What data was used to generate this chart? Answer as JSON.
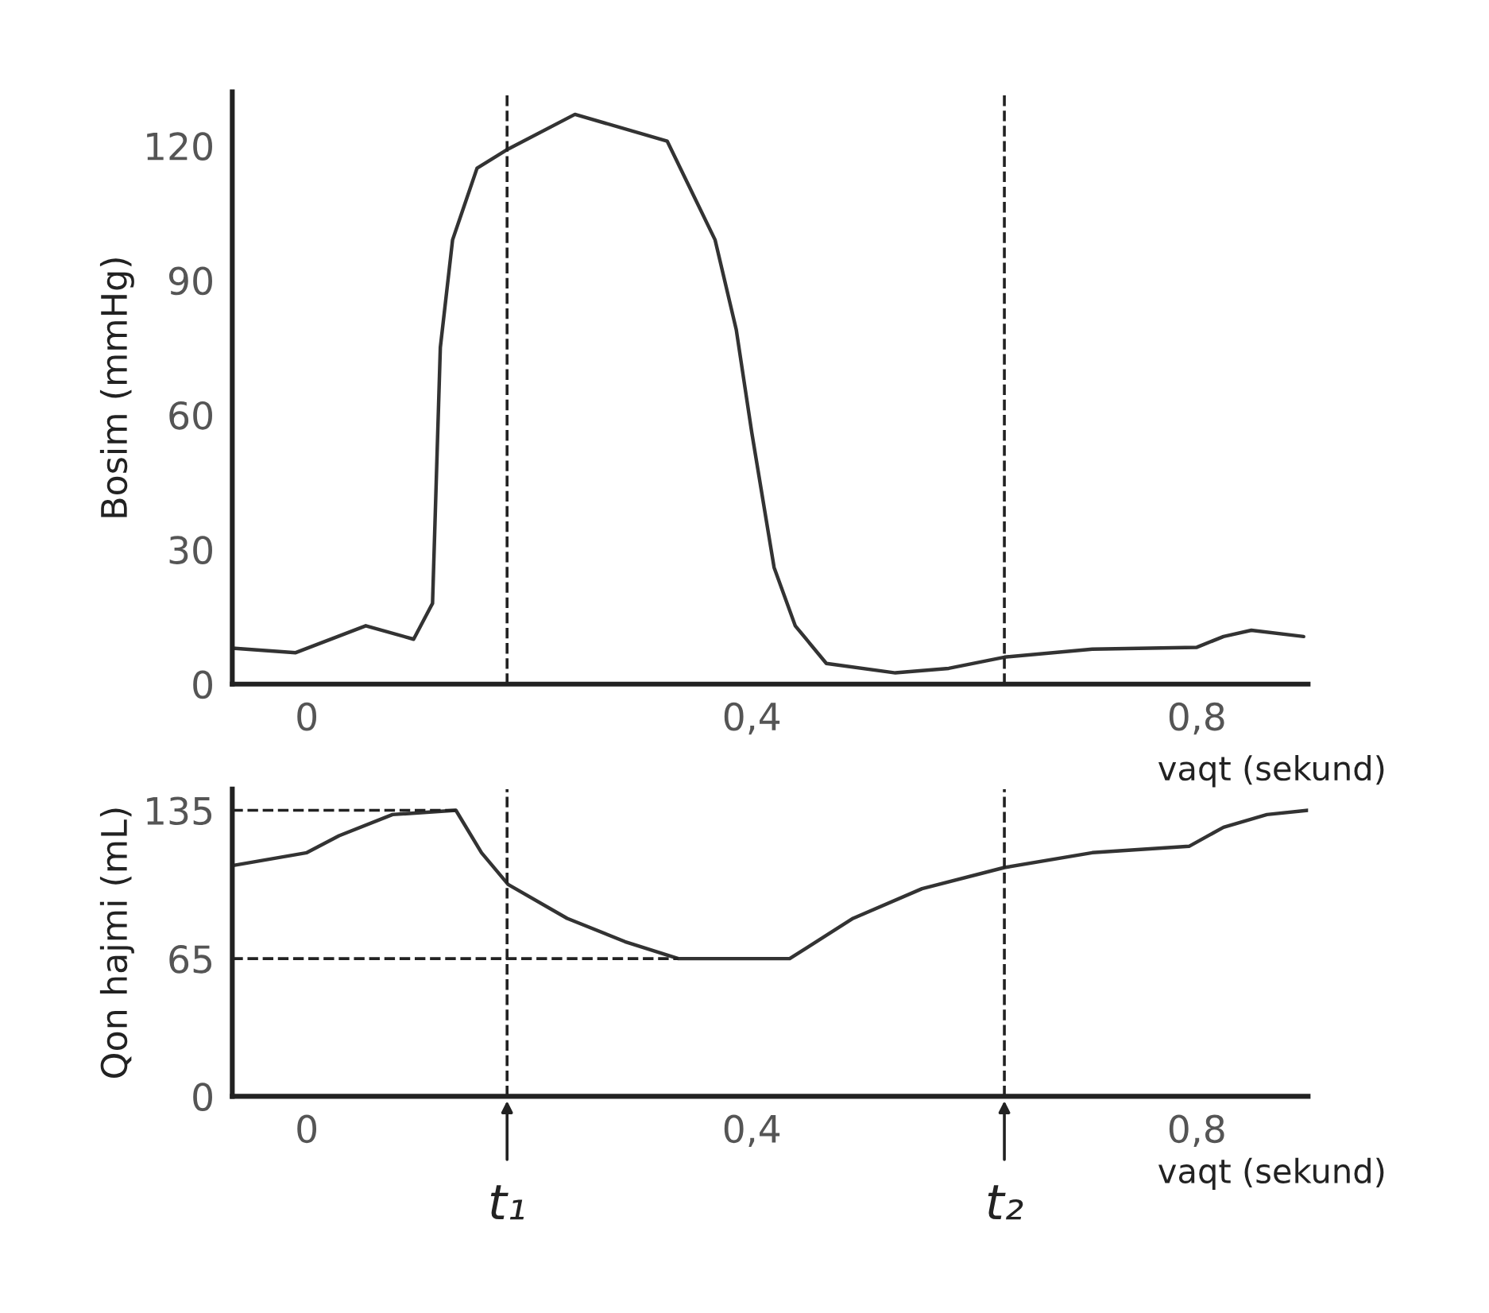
{
  "chart_data": [
    {
      "type": "line",
      "ylabel": "Bosim (mmHg)",
      "xlabel": "vaqt (sekund)",
      "x": [
        -0.067,
        -0.01,
        0.053,
        0.096,
        0.113,
        0.12,
        0.131,
        0.153,
        0.179,
        0.241,
        0.324,
        0.367,
        0.386,
        0.4,
        0.42,
        0.439,
        0.467,
        0.529,
        0.577,
        0.627,
        0.706,
        0.8,
        0.824,
        0.849,
        0.896
      ],
      "series": [
        {
          "color": "#333333",
          "values": [
            8,
            7,
            13,
            10,
            18,
            75,
            99,
            115,
            119,
            127,
            121,
            99,
            79,
            56,
            26,
            13,
            4.6,
            2.5,
            3.5,
            6,
            7.8,
            8.2,
            10.6,
            12,
            10.6
          ]
        }
      ],
      "xlim": [
        -0.067,
        0.9
      ],
      "xticks": [
        {
          "value": 0,
          "label": "0"
        },
        {
          "value": 0.4,
          "label": "0,4"
        },
        {
          "value": 0.8,
          "label": "0,8"
        }
      ],
      "ylim": [
        0,
        132
      ],
      "yticks": [
        0,
        30,
        60,
        90,
        120
      ],
      "ref_lines": [
        {
          "axis": "x",
          "value": 0.18,
          "line_style": "dashed"
        },
        {
          "axis": "x",
          "value": 0.627,
          "line_style": "dashed"
        }
      ]
    },
    {
      "type": "line",
      "ylabel": "Qon hajmi (mL)",
      "xlabel": "vaqt (sekund)",
      "x": [
        -0.066,
        0,
        0.029,
        0.077,
        0.134,
        0.157,
        0.181,
        0.234,
        0.286,
        0.334,
        0.434,
        0.491,
        0.553,
        0.627,
        0.706,
        0.793,
        0.824,
        0.863,
        0.9
      ],
      "series": [
        {
          "color": "#333333",
          "values": [
            109,
            115,
            123,
            133,
            135,
            115,
            100,
            84,
            73,
            65,
            65,
            84,
            98,
            108,
            115,
            118,
            127,
            133,
            135
          ]
        }
      ],
      "xlim": [
        -0.067,
        0.9
      ],
      "xticks": [
        {
          "value": 0,
          "label": "0"
        },
        {
          "value": 0.4,
          "label": "0,4"
        },
        {
          "value": 0.8,
          "label": "0,8"
        }
      ],
      "ylim": [
        0,
        145
      ],
      "yticks": [
        0,
        65,
        135
      ],
      "ref_lines": [
        {
          "axis": "x",
          "value": 0.18,
          "label": "t₁",
          "line_style": "dashed"
        },
        {
          "axis": "x",
          "value": 0.627,
          "label": "t₂",
          "line_style": "dashed"
        },
        {
          "axis": "y",
          "value": 135,
          "line_style": "dashed"
        },
        {
          "axis": "y",
          "value": 65,
          "line_style": "dashed"
        }
      ]
    }
  ]
}
